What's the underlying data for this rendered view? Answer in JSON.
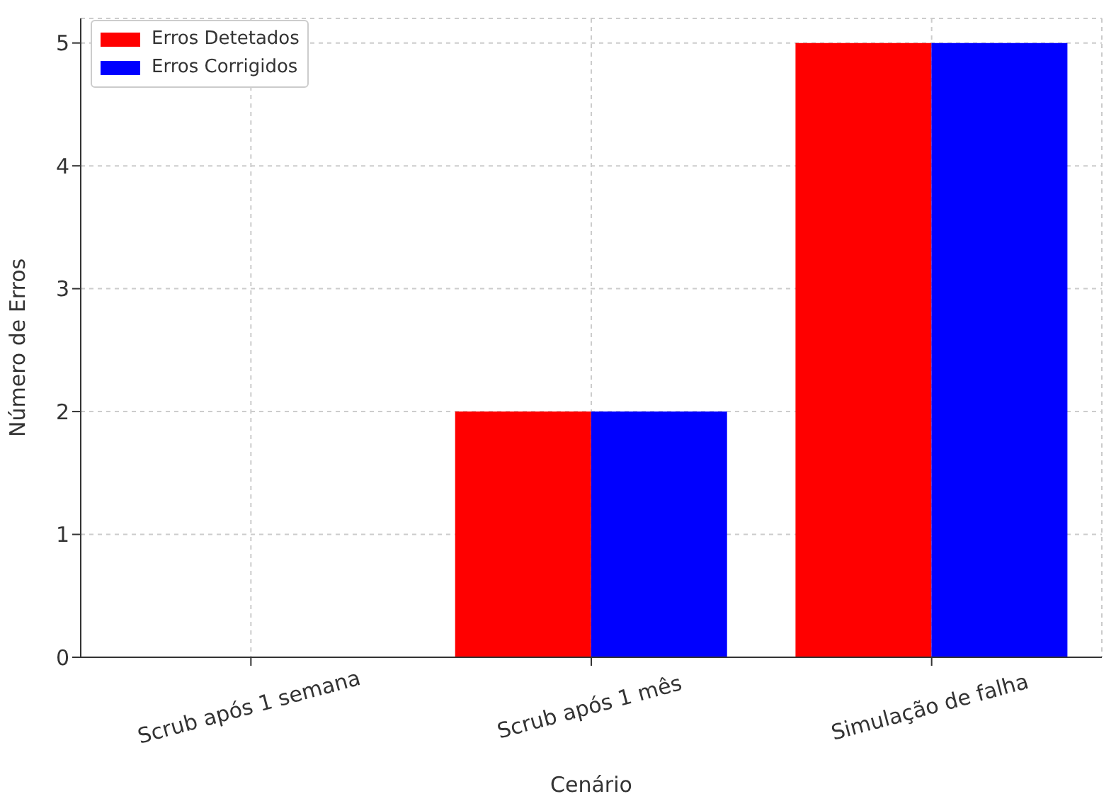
{
  "chart_data": {
    "type": "bar",
    "xlabel": "Cenário",
    "ylabel": "Número de Erros",
    "categories": [
      "Scrub após 1 semana",
      "Scrub após 1 mês",
      "Simulação de falha"
    ],
    "series": [
      {
        "name": "Erros Detetados",
        "color": "#ff0000",
        "values": [
          0,
          2,
          5
        ]
      },
      {
        "name": "Erros Corrigidos",
        "color": "#0000ff",
        "values": [
          0,
          2,
          5
        ]
      }
    ],
    "ylim": [
      0,
      5.2
    ],
    "yticks": [
      0,
      1,
      2,
      3,
      4,
      5
    ],
    "grid": true,
    "legend": "top left"
  }
}
